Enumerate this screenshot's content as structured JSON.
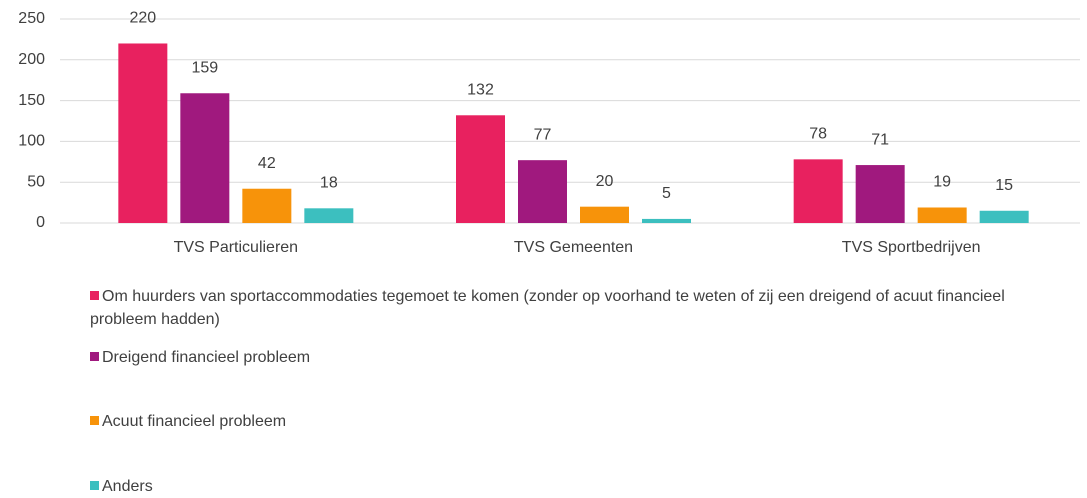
{
  "chart_data": {
    "type": "bar",
    "categories": [
      "TVS Particulieren",
      "TVS Gemeenten",
      "TVS Sportbedrijven"
    ],
    "series": [
      {
        "name": "Om huurders van sportaccommodaties tegemoet te komen (zonder op voorhand te weten of zij een dreigend of acuut financieel probleem hadden)",
        "color": "#e8215f",
        "values": [
          220,
          132,
          78
        ]
      },
      {
        "name": "Dreigend financieel probleem",
        "color": "#a0197e",
        "values": [
          159,
          77,
          71
        ]
      },
      {
        "name": "Acuut financieel probleem",
        "color": "#f7930a",
        "values": [
          42,
          20,
          19
        ]
      },
      {
        "name": "Anders",
        "color": "#3cbfbf",
        "values": [
          18,
          5,
          15
        ]
      }
    ],
    "ylim": [
      0,
      250
    ],
    "yticks": [
      0,
      50,
      100,
      150,
      200,
      250
    ],
    "grid": true,
    "legend": "bottom"
  }
}
